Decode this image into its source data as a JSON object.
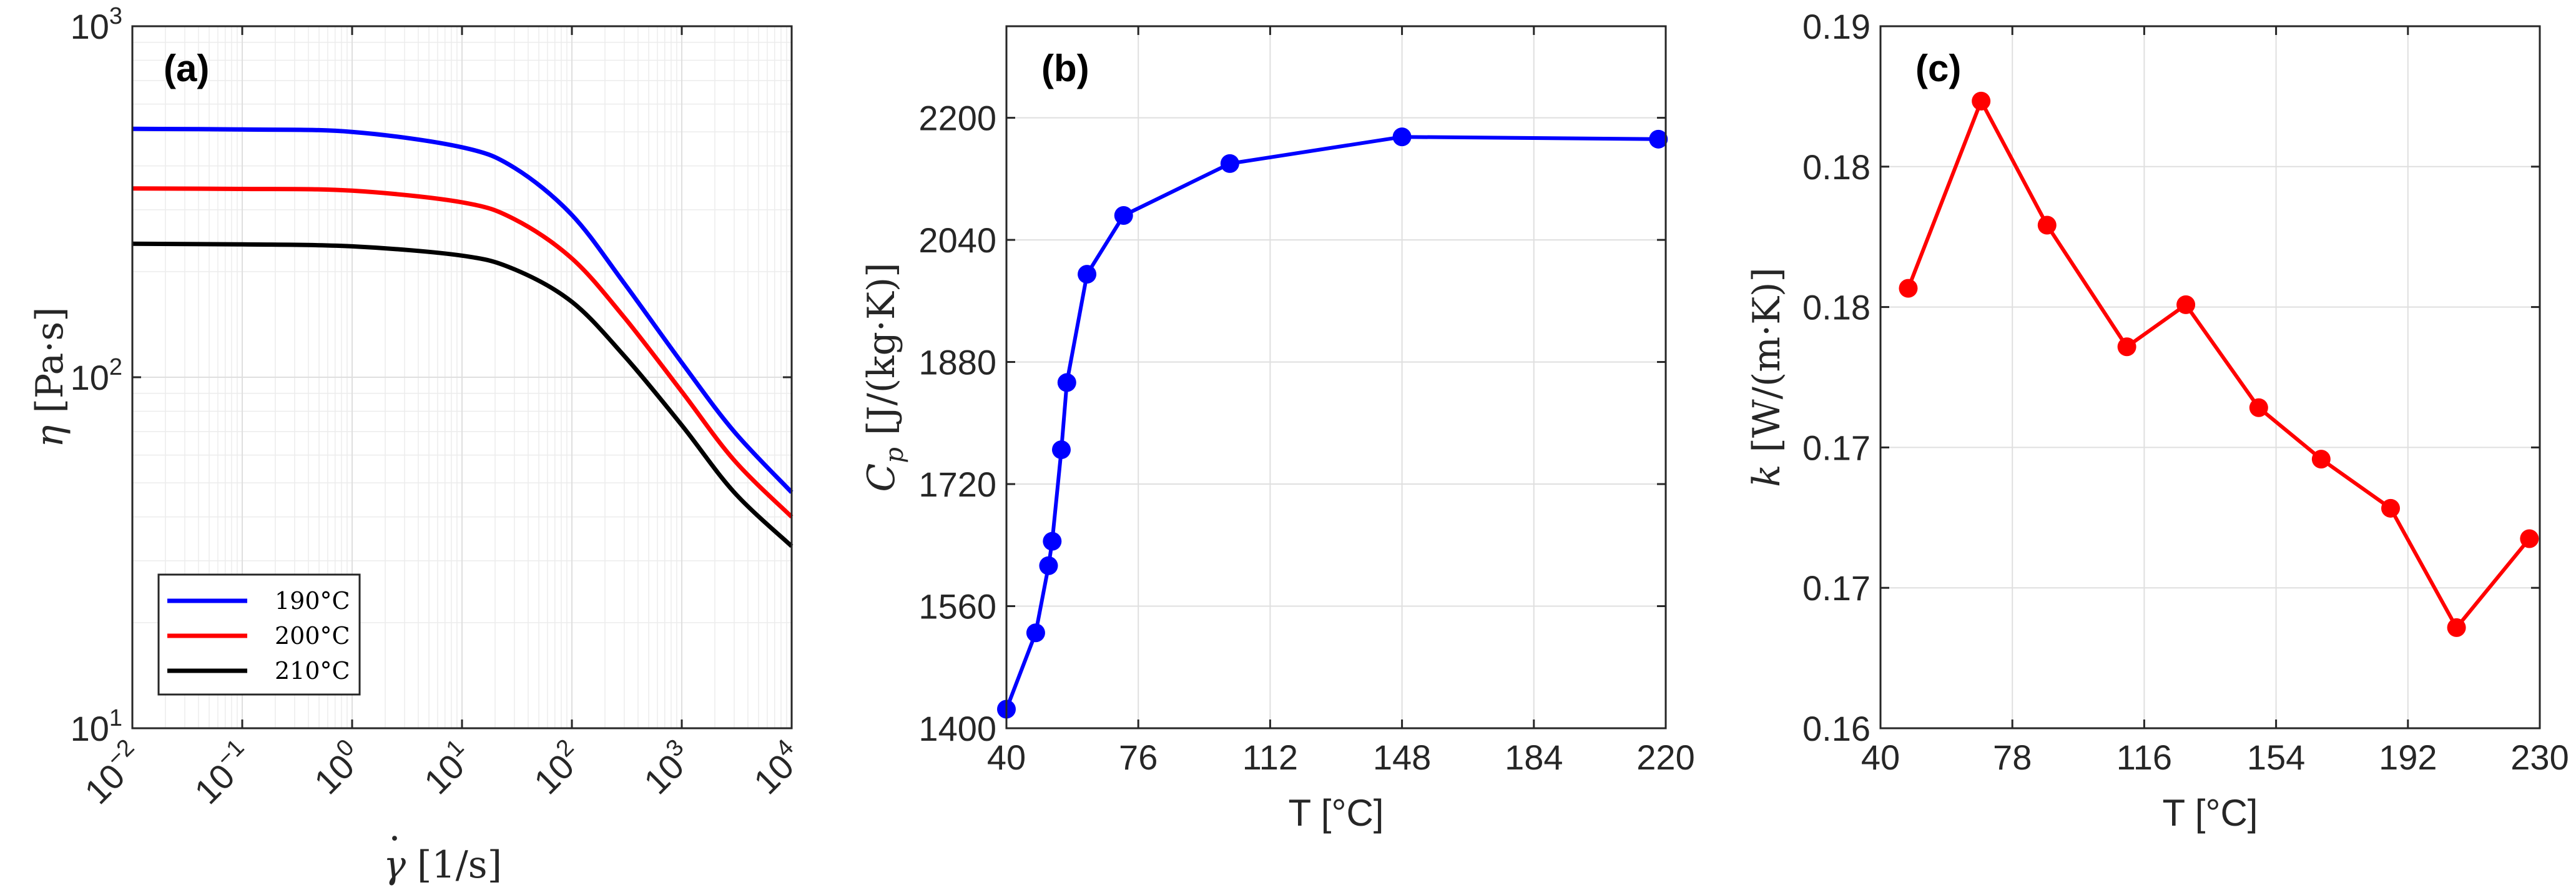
{
  "chart_data": [
    {
      "panel": "(a)",
      "type": "line",
      "xlabel": "γ̇ [1/s]",
      "ylabel": "η [Pa·s]",
      "x_scale": "log",
      "y_scale": "log",
      "xlim": [
        0.01,
        10000
      ],
      "ylim": [
        10,
        1000
      ],
      "x_ticks": [
        {
          "base": "10",
          "exp": "−2"
        },
        {
          "base": "10",
          "exp": "−1"
        },
        {
          "base": "10",
          "exp": "0"
        },
        {
          "base": "10",
          "exp": "1"
        },
        {
          "base": "10",
          "exp": "2"
        },
        {
          "base": "10",
          "exp": "3"
        },
        {
          "base": "10",
          "exp": "4"
        }
      ],
      "y_ticks": [
        {
          "base": "10",
          "exp": "1"
        },
        {
          "base": "10",
          "exp": "2"
        },
        {
          "base": "10",
          "exp": "3"
        }
      ],
      "grid": true,
      "legend_position": "bottom-left",
      "series": [
        {
          "name": "190°C",
          "color": "#0000ff",
          "x": [
            0.01,
            0.1,
            1,
            10,
            30,
            100,
            300,
            1000,
            3000,
            10000
          ],
          "y": [
            510,
            508,
            500,
            452,
            395,
            290,
            185,
            110,
            70,
            47
          ]
        },
        {
          "name": "200°C",
          "color": "#ff0000",
          "x": [
            0.01,
            0.1,
            1,
            10,
            30,
            100,
            300,
            1000,
            3000,
            10000
          ],
          "y": [
            345,
            344,
            340,
            315,
            282,
            218,
            148,
            91,
            58,
            40
          ]
        },
        {
          "name": "210°C",
          "color": "#000000",
          "x": [
            0.01,
            0.1,
            1,
            10,
            30,
            100,
            300,
            1000,
            3000,
            10000
          ],
          "y": [
            240,
            239,
            236,
            222,
            203,
            164,
            115,
            73,
            47,
            33
          ]
        }
      ]
    },
    {
      "panel": "(b)",
      "type": "line",
      "xlabel": "T [°C]",
      "ylabel": "Cp [J/(kg·K)]",
      "xlim": [
        40,
        220
      ],
      "ylim": [
        1400,
        2320
      ],
      "x_ticks": [
        "40",
        "76",
        "112",
        "148",
        "184",
        "220"
      ],
      "y_ticks": [
        "1400",
        "1560",
        "1720",
        "1880",
        "2040",
        "2200"
      ],
      "grid": true,
      "series": [
        {
          "name": "",
          "color": "#0000ff",
          "x": [
            40,
            48,
            51.5,
            52.5,
            55,
            56.5,
            62,
            72,
            101,
            148,
            218
          ],
          "y": [
            1425,
            1525,
            1613,
            1645,
            1765,
            1853,
            1995,
            2072,
            2140,
            2175,
            2172
          ]
        }
      ]
    },
    {
      "panel": "(c)",
      "type": "line",
      "xlabel": "T [°C]",
      "ylabel": "k [W/(m·K)]",
      "xlim": [
        40,
        230
      ],
      "ylim": [
        0.16,
        0.19
      ],
      "x_ticks": [
        "40",
        "78",
        "116",
        "154",
        "192",
        "230"
      ],
      "y_ticks": [
        "0.16",
        "0.17",
        "0.17",
        "0.18",
        "0.18",
        "0.19"
      ],
      "grid": true,
      "series": [
        {
          "name": "",
          "color": "#ff0000",
          "x": [
            48,
            69,
            88,
            111,
            128,
            149,
            167,
            187,
            206,
            227
          ],
          "y": [
            0.1788,
            0.1868,
            0.1815,
            0.1763,
            0.1781,
            0.1737,
            0.1715,
            0.1694,
            0.1643,
            0.1681
          ]
        }
      ]
    }
  ]
}
